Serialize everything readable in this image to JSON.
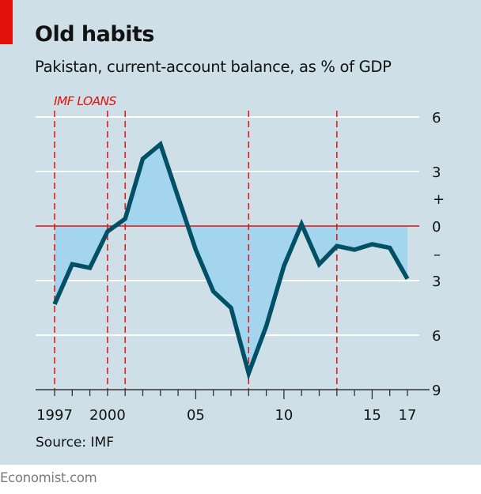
{
  "header": {
    "title": "Old habits",
    "subtitle": "Pakistan, current-account balance, as % of GDP"
  },
  "source": "Source: IMF",
  "footer": "Economist.com",
  "colors": {
    "background": "#cfdfe7",
    "accent_red": "#e3120b",
    "line": "#005066",
    "area_fill": "#a4d5ee",
    "gridline": "#ffffff"
  },
  "chart_data": {
    "type": "area",
    "title": "Old habits",
    "subtitle": "Pakistan, current-account balance, as % of GDP",
    "xlabel": "",
    "ylabel": "",
    "x": [
      1997,
      1998,
      1999,
      2000,
      2001,
      2002,
      2003,
      2004,
      2005,
      2006,
      2007,
      2008,
      2009,
      2010,
      2011,
      2012,
      2013,
      2014,
      2015,
      2016,
      2017
    ],
    "series": [
      {
        "name": "Current-account balance, % of GDP",
        "values": [
          -4.3,
          -2.1,
          -2.3,
          -0.3,
          0.4,
          3.7,
          4.5,
          1.6,
          -1.3,
          -3.6,
          -4.5,
          -8.1,
          -5.5,
          -2.2,
          0.1,
          -2.1,
          -1.1,
          -1.3,
          -1.0,
          -1.2,
          -2.9
        ]
      }
    ],
    "xlim": [
      1995.8,
      2018.3
    ],
    "ylim": [
      -9,
      6
    ],
    "y_ticks": [
      6,
      3,
      0,
      -3,
      -6,
      -9
    ],
    "y_tick_labels": [
      "6",
      "3",
      "0",
      "3",
      "6",
      "9"
    ],
    "y_sign_labels": {
      "positive": "+",
      "negative": "–"
    },
    "x_tick_labels": [
      {
        "x": 1997,
        "label": "1997"
      },
      {
        "x": 2000,
        "label": "2000"
      },
      {
        "x": 2005,
        "label": "05"
      },
      {
        "x": 2010,
        "label": "10"
      },
      {
        "x": 2015,
        "label": "15"
      },
      {
        "x": 2017,
        "label": "17"
      }
    ],
    "x_major_ticks": [
      2005,
      2010,
      2015
    ],
    "grid": true,
    "y_axis_side": "right",
    "zero_line": true,
    "annotations": {
      "label": "IMF LOANS",
      "years": [
        1997,
        2000,
        2001,
        2008,
        2013
      ]
    }
  }
}
